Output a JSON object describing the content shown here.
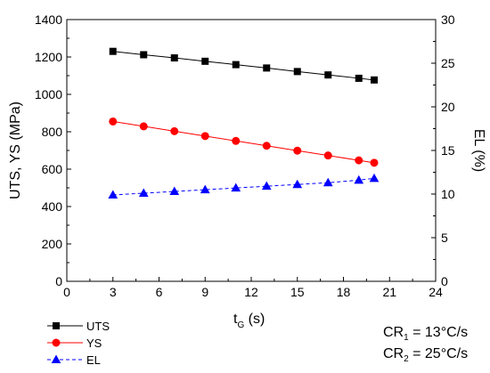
{
  "chart_data": {
    "type": "line",
    "xlabel": "t",
    "xlabel_sub": "G",
    "xlabel_unit": " (s)",
    "ylabel": "UTS, YS (MPa)",
    "y2label": "EL (%)",
    "xlim": [
      0,
      24
    ],
    "ylim": [
      0,
      1400
    ],
    "y2lim": [
      0,
      30
    ],
    "xticks": [
      0,
      3,
      6,
      9,
      12,
      15,
      18,
      21,
      24
    ],
    "yticks": [
      0,
      200,
      400,
      600,
      800,
      1000,
      1200,
      1400
    ],
    "y2ticks": [
      0,
      5,
      10,
      15,
      20,
      25,
      30
    ],
    "x": [
      3,
      5,
      7,
      9,
      11,
      13,
      15,
      17,
      19,
      20
    ],
    "series": [
      {
        "name": "UTS",
        "axis": "left",
        "color": "#000000",
        "marker": "square",
        "values": [
          1230,
          1212,
          1195,
          1177,
          1159,
          1141,
          1122,
          1104,
          1086,
          1077
        ]
      },
      {
        "name": "YS",
        "axis": "left",
        "color": "#ff0000",
        "marker": "circle",
        "values": [
          855,
          829,
          803,
          777,
          751,
          725,
          699,
          673,
          647,
          634
        ]
      },
      {
        "name": "EL",
        "axis": "right",
        "color": "#0000ff",
        "marker": "triangle",
        "values": [
          9.9,
          10.1,
          10.3,
          10.5,
          10.7,
          10.9,
          11.1,
          11.3,
          11.6,
          11.8
        ]
      }
    ],
    "legend_position": "bottom-left",
    "annotations": [
      {
        "label": "CR",
        "sub": "1",
        "text": " = 13°C/s"
      },
      {
        "label": "CR",
        "sub": "2",
        "text": " = 25°C/s"
      }
    ]
  }
}
